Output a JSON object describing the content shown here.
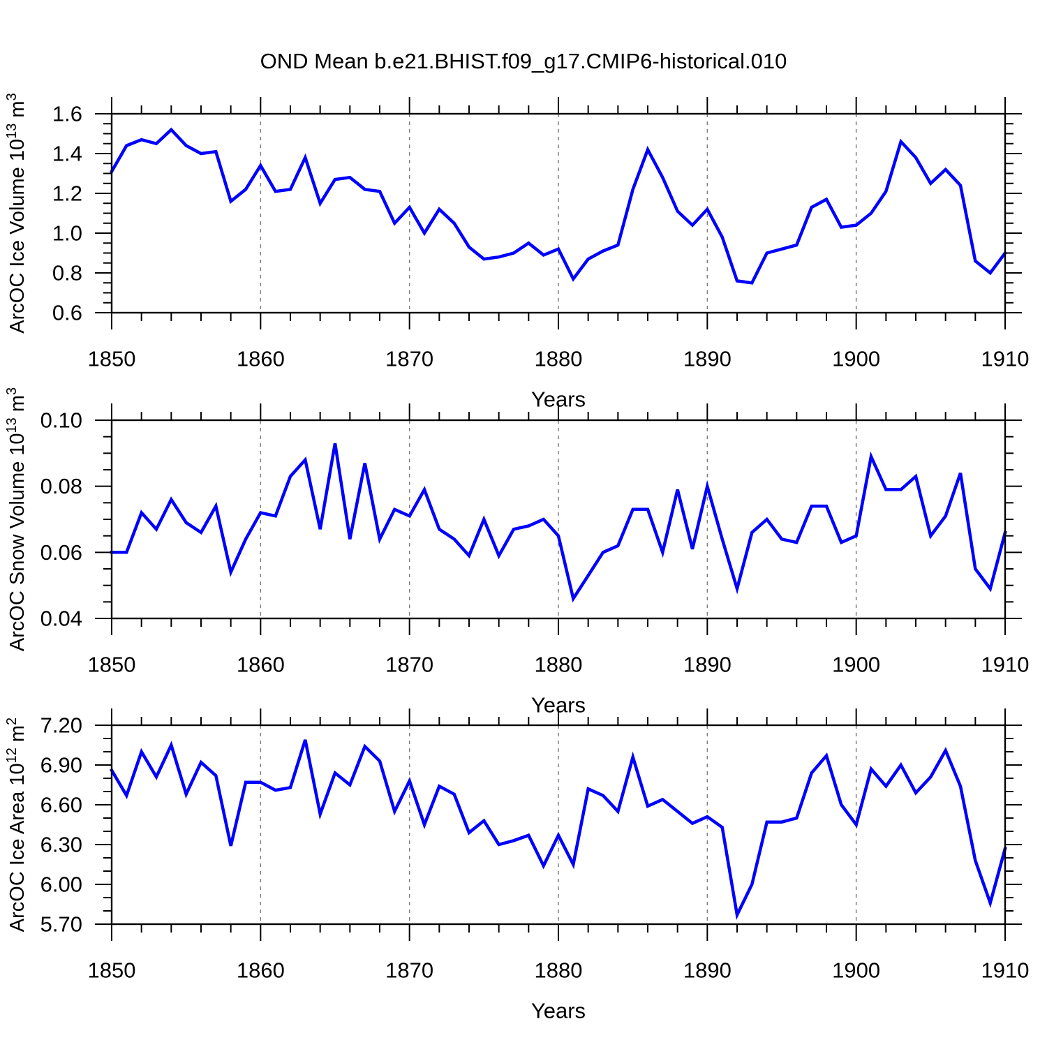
{
  "title": "OND Mean b.e21.BHIST.f09_g17.CMIP6-historical.010",
  "colors": {
    "line": "#0000ff",
    "axis": "#000000",
    "grid_dashed": "#808080",
    "background": "#ffffff"
  },
  "chart_data": [
    {
      "type": "line",
      "name": "ice-volume",
      "ylabel_parts": [
        {
          "text": "ArcOC Ice Volume 10"
        },
        {
          "text": "13",
          "sup": true
        },
        {
          "text": " m"
        },
        {
          "text": "3",
          "sup": true
        }
      ],
      "xlabel": "Years",
      "x_start": 1850,
      "x_end": 1910,
      "xticks_major": [
        1850,
        1860,
        1870,
        1880,
        1890,
        1900,
        1910
      ],
      "xtick_labels": [
        "1850",
        "1860",
        "1870",
        "1880",
        "1890",
        "1900",
        "1910"
      ],
      "xtick_minor_step": 2,
      "grid_x_dashed": [
        1860,
        1870,
        1880,
        1890,
        1900
      ],
      "ylim": [
        0.6,
        1.6
      ],
      "yticks_major": [
        0.6,
        0.8,
        1.0,
        1.2,
        1.4,
        1.6
      ],
      "ytick_labels": [
        "0.6",
        "0.8",
        "1.0",
        "1.2",
        "1.4",
        "1.6"
      ],
      "ytick_minor_step": 0.05,
      "x": [
        1850,
        1851,
        1852,
        1853,
        1854,
        1855,
        1856,
        1857,
        1858,
        1859,
        1860,
        1861,
        1862,
        1863,
        1864,
        1865,
        1866,
        1867,
        1868,
        1869,
        1870,
        1871,
        1872,
        1873,
        1874,
        1875,
        1876,
        1877,
        1878,
        1879,
        1880,
        1881,
        1882,
        1883,
        1884,
        1885,
        1886,
        1887,
        1888,
        1889,
        1890,
        1891,
        1892,
        1893,
        1894,
        1895,
        1896,
        1897,
        1898,
        1899,
        1900,
        1901,
        1902,
        1903,
        1904,
        1905,
        1906,
        1907,
        1908,
        1909,
        1910
      ],
      "values": [
        1.31,
        1.44,
        1.47,
        1.45,
        1.52,
        1.44,
        1.4,
        1.41,
        1.16,
        1.22,
        1.34,
        1.21,
        1.22,
        1.38,
        1.15,
        1.27,
        1.28,
        1.22,
        1.21,
        1.05,
        1.13,
        1.0,
        1.12,
        1.05,
        0.93,
        0.87,
        0.88,
        0.9,
        0.95,
        0.89,
        0.92,
        0.77,
        0.87,
        0.91,
        0.94,
        1.22,
        1.42,
        1.28,
        1.11,
        1.04,
        1.12,
        0.98,
        0.76,
        0.75,
        0.9,
        0.92,
        0.94,
        1.13,
        1.17,
        1.03,
        1.04,
        1.1,
        1.21,
        1.46,
        1.38,
        1.25,
        1.32,
        1.24,
        0.86,
        0.8,
        0.9
      ]
    },
    {
      "type": "line",
      "name": "snow-volume",
      "ylabel_parts": [
        {
          "text": "ArcOC Snow Volume 10"
        },
        {
          "text": "13",
          "sup": true
        },
        {
          "text": " m"
        },
        {
          "text": "3",
          "sup": true
        }
      ],
      "xlabel": "Years",
      "x_start": 1850,
      "x_end": 1910,
      "xticks_major": [
        1850,
        1860,
        1870,
        1880,
        1890,
        1900,
        1910
      ],
      "xtick_labels": [
        "1850",
        "1860",
        "1870",
        "1880",
        "1890",
        "1900",
        "1910"
      ],
      "xtick_minor_step": 2,
      "grid_x_dashed": [
        1860,
        1870,
        1880,
        1890,
        1900
      ],
      "ylim": [
        0.04,
        0.1
      ],
      "yticks_major": [
        0.04,
        0.06,
        0.08,
        0.1
      ],
      "ytick_labels": [
        "0.04",
        "0.06",
        "0.08",
        "0.10"
      ],
      "ytick_minor_step": 0.005,
      "x": [
        1850,
        1851,
        1852,
        1853,
        1854,
        1855,
        1856,
        1857,
        1858,
        1859,
        1860,
        1861,
        1862,
        1863,
        1864,
        1865,
        1866,
        1867,
        1868,
        1869,
        1870,
        1871,
        1872,
        1873,
        1874,
        1875,
        1876,
        1877,
        1878,
        1879,
        1880,
        1881,
        1882,
        1883,
        1884,
        1885,
        1886,
        1887,
        1888,
        1889,
        1890,
        1891,
        1892,
        1893,
        1894,
        1895,
        1896,
        1897,
        1898,
        1899,
        1900,
        1901,
        1902,
        1903,
        1904,
        1905,
        1906,
        1907,
        1908,
        1909,
        1910
      ],
      "values": [
        0.06,
        0.06,
        0.072,
        0.067,
        0.076,
        0.069,
        0.066,
        0.074,
        0.054,
        0.064,
        0.072,
        0.071,
        0.083,
        0.088,
        0.067,
        0.093,
        0.064,
        0.087,
        0.064,
        0.073,
        0.071,
        0.079,
        0.067,
        0.064,
        0.059,
        0.07,
        0.059,
        0.067,
        0.068,
        0.07,
        0.065,
        0.046,
        0.053,
        0.06,
        0.062,
        0.073,
        0.073,
        0.06,
        0.079,
        0.061,
        0.08,
        0.064,
        0.049,
        0.066,
        0.07,
        0.064,
        0.063,
        0.074,
        0.074,
        0.063,
        0.065,
        0.089,
        0.079,
        0.079,
        0.083,
        0.065,
        0.071,
        0.084,
        0.055,
        0.049,
        0.066
      ]
    },
    {
      "type": "line",
      "name": "ice-area",
      "ylabel_parts": [
        {
          "text": "ArcOC Ice Area 10"
        },
        {
          "text": "12",
          "sup": true
        },
        {
          "text": " m"
        },
        {
          "text": "2",
          "sup": true
        }
      ],
      "xlabel": "Years",
      "x_start": 1850,
      "x_end": 1910,
      "xticks_major": [
        1850,
        1860,
        1870,
        1880,
        1890,
        1900,
        1910
      ],
      "xtick_labels": [
        "1850",
        "1860",
        "1870",
        "1880",
        "1890",
        "1900",
        "1910"
      ],
      "xtick_minor_step": 2,
      "grid_x_dashed": [
        1860,
        1870,
        1880,
        1890,
        1900
      ],
      "ylim": [
        5.7,
        7.2
      ],
      "yticks_major": [
        5.7,
        6.0,
        6.3,
        6.6,
        6.9,
        7.2
      ],
      "ytick_labels": [
        "5.70",
        "6.00",
        "6.30",
        "6.60",
        "6.90",
        "7.20"
      ],
      "ytick_minor_step": 0.1,
      "x": [
        1850,
        1851,
        1852,
        1853,
        1854,
        1855,
        1856,
        1857,
        1858,
        1859,
        1860,
        1861,
        1862,
        1863,
        1864,
        1865,
        1866,
        1867,
        1868,
        1869,
        1870,
        1871,
        1872,
        1873,
        1874,
        1875,
        1876,
        1877,
        1878,
        1879,
        1880,
        1881,
        1882,
        1883,
        1884,
        1885,
        1886,
        1887,
        1888,
        1889,
        1890,
        1891,
        1892,
        1893,
        1894,
        1895,
        1896,
        1897,
        1898,
        1899,
        1900,
        1901,
        1902,
        1903,
        1904,
        1905,
        1906,
        1907,
        1908,
        1909,
        1910
      ],
      "values": [
        6.86,
        6.67,
        7.0,
        6.81,
        7.05,
        6.68,
        6.92,
        6.82,
        6.29,
        6.77,
        6.77,
        6.71,
        6.73,
        7.09,
        6.53,
        6.84,
        6.75,
        7.04,
        6.93,
        6.55,
        6.78,
        6.45,
        6.74,
        6.68,
        6.39,
        6.48,
        6.3,
        6.33,
        6.37,
        6.14,
        6.37,
        6.15,
        6.72,
        6.67,
        6.55,
        6.96,
        6.59,
        6.64,
        6.55,
        6.46,
        6.51,
        6.43,
        5.77,
        6.0,
        6.47,
        6.47,
        6.5,
        6.84,
        6.97,
        6.6,
        6.45,
        6.87,
        6.74,
        6.9,
        6.69,
        6.81,
        7.01,
        6.74,
        6.18,
        5.86,
        6.27
      ]
    }
  ]
}
